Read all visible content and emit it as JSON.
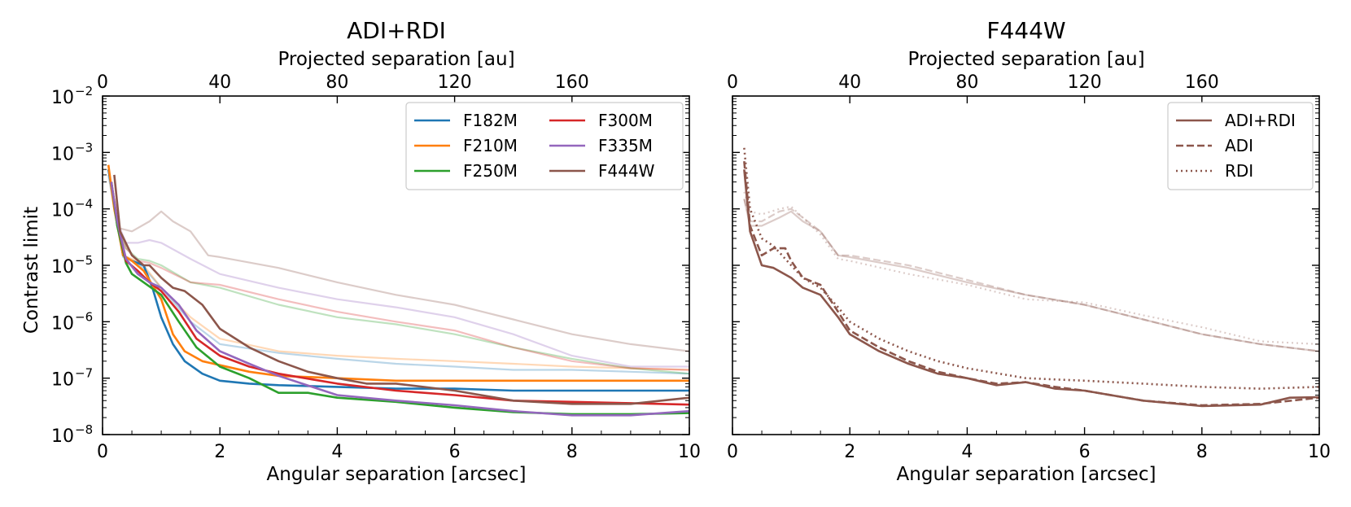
{
  "figure": {
    "y_axis_label": "Contrast limit",
    "y_tick_bases": [
      "10",
      "10",
      "10",
      "10",
      "10",
      "10",
      "10"
    ],
    "y_tick_exponents": [
      "−8",
      "−7",
      "−6",
      "−5",
      "−4",
      "−3",
      "−2"
    ]
  },
  "chart_data": [
    {
      "type": "line",
      "title": "ADI+RDI",
      "xlabel": "Angular separation [arcsec]",
      "x2label": "Projected separation [au]",
      "ylabel": "Contrast limit",
      "yscale": "log",
      "xlim": [
        0,
        10
      ],
      "ylim": [
        1e-08,
        0.01
      ],
      "x_ticks": [
        "0",
        "2",
        "4",
        "6",
        "8",
        "10"
      ],
      "x2_ticks": [
        "0",
        "40",
        "80",
        "120",
        "160"
      ],
      "x2_per_x": 20,
      "legend_position": "upper right",
      "legend_columns": 2,
      "series": [
        {
          "name": "F182M",
          "color": "#1f77b4",
          "x": [
            0.1,
            0.2,
            0.35,
            0.5,
            0.7,
            0.85,
            1.0,
            1.2,
            1.4,
            1.7,
            2.0,
            2.5,
            3.0,
            4.0,
            5.0,
            6.0,
            7.0,
            8.0,
            9.0,
            10.0
          ],
          "y": [
            0.0005,
            0.00012,
            1.5e-05,
            1.2e-05,
            1e-05,
            4e-06,
            1.2e-06,
            4e-07,
            2e-07,
            1.2e-07,
            9e-08,
            8e-08,
            7.5e-08,
            7e-08,
            6.5e-08,
            6.5e-08,
            6e-08,
            6e-08,
            6e-08,
            6e-08
          ],
          "faint_x": [
            0.1,
            0.2,
            0.35,
            0.5,
            0.7,
            1.0,
            1.5,
            2.0,
            3.0,
            4.0,
            5.0,
            6.0,
            7.0,
            8.0,
            9.0,
            10.0
          ],
          "faint_y": [
            0.0004,
            0.0001,
            1.4e-05,
            1.2e-05,
            9e-06,
            4e-06,
            1e-06,
            4e-07,
            2.8e-07,
            2.2e-07,
            1.8e-07,
            1.6e-07,
            1.4e-07,
            1.4e-07,
            1.3e-07,
            1.2e-07
          ]
        },
        {
          "name": "F210M",
          "color": "#ff7f0e",
          "x": [
            0.1,
            0.2,
            0.35,
            0.5,
            0.7,
            1.0,
            1.2,
            1.4,
            1.7,
            2.0,
            2.5,
            3.0,
            4.0,
            5.0,
            6.0,
            7.0,
            8.0,
            9.0,
            10.0
          ],
          "y": [
            0.0006,
            0.0001,
            1.5e-05,
            1.2e-05,
            8e-06,
            2.5e-06,
            6e-07,
            3e-07,
            2e-07,
            1.7e-07,
            1.3e-07,
            1.1e-07,
            1e-07,
            9e-08,
            9e-08,
            9e-08,
            9e-08,
            9e-08,
            9e-08
          ],
          "faint_x": [
            0.1,
            0.2,
            0.35,
            0.5,
            0.7,
            1.0,
            1.5,
            2.0,
            3.0,
            4.0,
            5.0,
            6.0,
            7.0,
            8.0,
            9.0,
            10.0
          ],
          "faint_y": [
            0.0005,
            0.0001,
            1.5e-05,
            1.3e-05,
            1e-05,
            4e-06,
            1.2e-06,
            5e-07,
            3e-07,
            2.5e-07,
            2.2e-07,
            2e-07,
            1.8e-07,
            1.6e-07,
            1.5e-07,
            1.4e-07
          ]
        },
        {
          "name": "F250M",
          "color": "#2ca02c",
          "x": [
            0.15,
            0.25,
            0.4,
            0.5,
            0.7,
            1.0,
            1.3,
            1.6,
            2.0,
            2.5,
            3.0,
            3.5,
            4.0,
            5.0,
            6.0,
            7.0,
            8.0,
            9.0,
            10.0
          ],
          "y": [
            0.0003,
            5e-05,
            1.1e-05,
            7e-06,
            5e-06,
            3e-06,
            1e-06,
            3.5e-07,
            1.6e-07,
            1e-07,
            5.5e-08,
            5.5e-08,
            4.5e-08,
            3.8e-08,
            3e-08,
            2.5e-08,
            2.3e-08,
            2.3e-08,
            2.4e-08
          ],
          "faint_x": [
            0.15,
            0.25,
            0.4,
            0.6,
            0.8,
            1.0,
            1.5,
            2.0,
            3.0,
            4.0,
            5.0,
            6.0,
            7.0,
            8.0,
            9.0,
            10.0
          ],
          "faint_y": [
            0.0003,
            5e-05,
            2e-05,
            1.3e-05,
            1.2e-05,
            1e-05,
            5e-06,
            4e-06,
            2e-06,
            1.2e-06,
            9e-07,
            6e-07,
            3.5e-07,
            2.2e-07,
            1.5e-07,
            1.2e-07
          ]
        },
        {
          "name": "F300M",
          "color": "#d62728",
          "x": [
            0.15,
            0.25,
            0.4,
            0.6,
            0.8,
            1.0,
            1.3,
            1.6,
            2.0,
            2.5,
            3.0,
            4.0,
            5.0,
            6.0,
            7.0,
            8.0,
            9.0,
            10.0
          ],
          "y": [
            0.0003,
            6e-05,
            1.2e-05,
            8e-06,
            5e-06,
            3.5e-06,
            1.5e-06,
            5e-07,
            2.5e-07,
            1.6e-07,
            1.2e-07,
            8e-08,
            6e-08,
            5e-08,
            4e-08,
            3.8e-08,
            3.6e-08,
            3.4e-08
          ],
          "faint_x": [
            0.15,
            0.25,
            0.4,
            0.6,
            0.8,
            1.0,
            1.5,
            2.0,
            3.0,
            4.0,
            5.0,
            6.0,
            7.0,
            8.0,
            9.0,
            10.0
          ],
          "faint_y": [
            0.0003,
            6e-05,
            2e-05,
            1.2e-05,
            1.1e-05,
            9e-06,
            5e-06,
            4.5e-06,
            2.5e-06,
            1.5e-06,
            1e-06,
            7e-07,
            3.5e-07,
            2e-07,
            1.5e-07,
            1.4e-07
          ]
        },
        {
          "name": "F335M",
          "color": "#9467bd",
          "x": [
            0.15,
            0.25,
            0.4,
            0.6,
            0.8,
            1.0,
            1.3,
            1.6,
            2.0,
            2.5,
            3.0,
            4.0,
            5.0,
            6.0,
            7.0,
            8.0,
            9.0,
            10.0
          ],
          "y": [
            0.0003,
            6e-05,
            1.3e-05,
            7e-06,
            5e-06,
            4e-06,
            2e-06,
            7e-07,
            3e-07,
            1.8e-07,
            1.1e-07,
            5e-08,
            4e-08,
            3.3e-08,
            2.6e-08,
            2.2e-08,
            2.2e-08,
            2.6e-08
          ],
          "faint_x": [
            0.15,
            0.25,
            0.4,
            0.6,
            0.8,
            1.0,
            1.5,
            2.0,
            3.0,
            4.0,
            5.0,
            6.0,
            7.0,
            8.0,
            9.0,
            10.0
          ],
          "faint_y": [
            0.0003,
            6e-05,
            2.5e-05,
            2.5e-05,
            2.8e-05,
            2.5e-05,
            1.3e-05,
            7e-06,
            4e-06,
            2.5e-06,
            1.8e-06,
            1.2e-06,
            6e-07,
            2.5e-07,
            1.6e-07,
            1.6e-07
          ]
        },
        {
          "name": "F444W",
          "color": "#8c564b",
          "x": [
            0.2,
            0.3,
            0.5,
            0.7,
            0.8,
            1.0,
            1.2,
            1.4,
            1.7,
            2.0,
            2.5,
            3.0,
            3.5,
            4.0,
            4.5,
            5.0,
            6.0,
            7.0,
            8.0,
            9.0,
            10.0
          ],
          "y": [
            0.0004,
            4e-05,
            1.5e-05,
            1e-05,
            1e-05,
            6e-06,
            4e-06,
            3.5e-06,
            2e-06,
            7.5e-07,
            3.5e-07,
            2e-07,
            1.3e-07,
            1e-07,
            8e-08,
            8e-08,
            6e-08,
            4e-08,
            3.5e-08,
            3.5e-08,
            4.5e-08
          ],
          "faint_x": [
            0.2,
            0.3,
            0.5,
            0.8,
            1.0,
            1.2,
            1.5,
            1.8,
            2.0,
            3.0,
            4.0,
            5.0,
            6.0,
            7.0,
            8.0,
            9.0,
            10.0
          ],
          "faint_y": [
            0.00015,
            4.5e-05,
            4e-05,
            6e-05,
            9e-05,
            6e-05,
            4e-05,
            1.5e-05,
            1.4e-05,
            9e-06,
            5e-06,
            3e-06,
            2e-06,
            1.1e-06,
            6e-07,
            4e-07,
            3e-07
          ]
        }
      ]
    },
    {
      "type": "line",
      "title": "F444W",
      "xlabel": "Angular separation [arcsec]",
      "x2label": "Projected separation [au]",
      "yscale": "log",
      "xlim": [
        0,
        10
      ],
      "ylim": [
        1e-08,
        0.01
      ],
      "x_ticks": [
        "0",
        "2",
        "4",
        "6",
        "8",
        "10"
      ],
      "x2_ticks": [
        "0",
        "40",
        "80",
        "120",
        "160"
      ],
      "x2_per_x": 20,
      "legend_position": "upper right",
      "legend_columns": 1,
      "series": [
        {
          "name": "ADI+RDI",
          "color": "#8c564b",
          "linestyle": "solid",
          "x": [
            0.2,
            0.3,
            0.5,
            0.7,
            1.0,
            1.2,
            1.5,
            1.8,
            2.0,
            2.5,
            3.0,
            3.5,
            4.0,
            4.5,
            5.0,
            5.5,
            6.0,
            7.0,
            8.0,
            9.0,
            9.5,
            10.0
          ],
          "y": [
            0.0005,
            4e-05,
            1e-05,
            9e-06,
            6e-06,
            4e-06,
            3e-06,
            1.2e-06,
            6e-07,
            3e-07,
            1.8e-07,
            1.2e-07,
            1e-07,
            7.5e-08,
            8.5e-08,
            6.5e-08,
            6e-08,
            4e-08,
            3.2e-08,
            3.4e-08,
            4.5e-08,
            4.6e-08
          ],
          "faint_x": [
            0.2,
            0.3,
            0.5,
            0.8,
            1.0,
            1.2,
            1.5,
            1.8,
            2.0,
            3.0,
            4.0,
            5.0,
            6.0,
            7.0,
            8.0,
            9.0,
            10.0
          ],
          "faint_y": [
            0.00015,
            5e-05,
            5e-05,
            7e-05,
            9e-05,
            6e-05,
            4e-05,
            1.5e-05,
            1.4e-05,
            9e-06,
            5e-06,
            3e-06,
            2e-06,
            1.1e-06,
            6e-07,
            4e-07,
            3e-07
          ]
        },
        {
          "name": "ADI",
          "color": "#8c564b",
          "linestyle": "dashed",
          "x": [
            0.2,
            0.3,
            0.5,
            0.7,
            0.9,
            1.0,
            1.2,
            1.5,
            1.8,
            2.0,
            2.5,
            3.0,
            3.5,
            4.0,
            4.5,
            5.0,
            5.5,
            6.0,
            7.0,
            8.0,
            9.0,
            10.0
          ],
          "y": [
            0.0007,
            5e-05,
            1.5e-05,
            2e-05,
            2e-05,
            1.2e-05,
            6e-06,
            4.5e-06,
            1.5e-06,
            7e-07,
            3.5e-07,
            2e-07,
            1.3e-07,
            1e-07,
            8e-08,
            8.5e-08,
            7e-08,
            6e-08,
            4e-08,
            3.3e-08,
            3.5e-08,
            4.5e-08
          ],
          "faint_x": [
            0.2,
            0.3,
            0.5,
            0.8,
            1.0,
            1.2,
            1.5,
            1.8,
            2.0,
            3.0,
            4.0,
            5.0,
            6.0,
            7.0,
            8.0,
            9.0,
            10.0
          ],
          "faint_y": [
            0.00015,
            6e-05,
            6e-05,
            9e-05,
            0.0001,
            7e-05,
            4e-05,
            1.5e-05,
            1.5e-05,
            1e-05,
            5.5e-06,
            3e-06,
            2e-06,
            1.1e-06,
            6e-07,
            4e-07,
            3e-07
          ]
        },
        {
          "name": "RDI",
          "color": "#8c564b",
          "linestyle": "dotted",
          "x": [
            0.2,
            0.3,
            0.5,
            0.7,
            1.0,
            1.2,
            1.5,
            1.8,
            2.0,
            2.5,
            3.0,
            3.5,
            4.0,
            5.0,
            6.0,
            7.0,
            8.0,
            9.0,
            10.0
          ],
          "y": [
            0.0012,
            0.0001,
            3e-05,
            2.2e-05,
            1e-05,
            6e-06,
            4e-06,
            1.8e-06,
            1e-06,
            5e-07,
            3e-07,
            2e-07,
            1.5e-07,
            1e-07,
            9e-08,
            8e-08,
            7e-08,
            6.5e-08,
            7e-08
          ],
          "faint_x": [
            0.2,
            0.3,
            0.5,
            0.8,
            1.0,
            1.2,
            1.5,
            1.8,
            2.0,
            3.0,
            4.0,
            5.0,
            6.0,
            7.0,
            8.0,
            9.0,
            10.0
          ],
          "faint_y": [
            0.0002,
            9e-05,
            8e-05,
            0.0001,
            0.00011,
            7e-05,
            3.5e-05,
            1.3e-05,
            1.2e-05,
            7e-06,
            4.5e-06,
            2.5e-06,
            2.2e-06,
            1.3e-06,
            8e-07,
            4.5e-07,
            4e-07
          ]
        }
      ]
    }
  ]
}
